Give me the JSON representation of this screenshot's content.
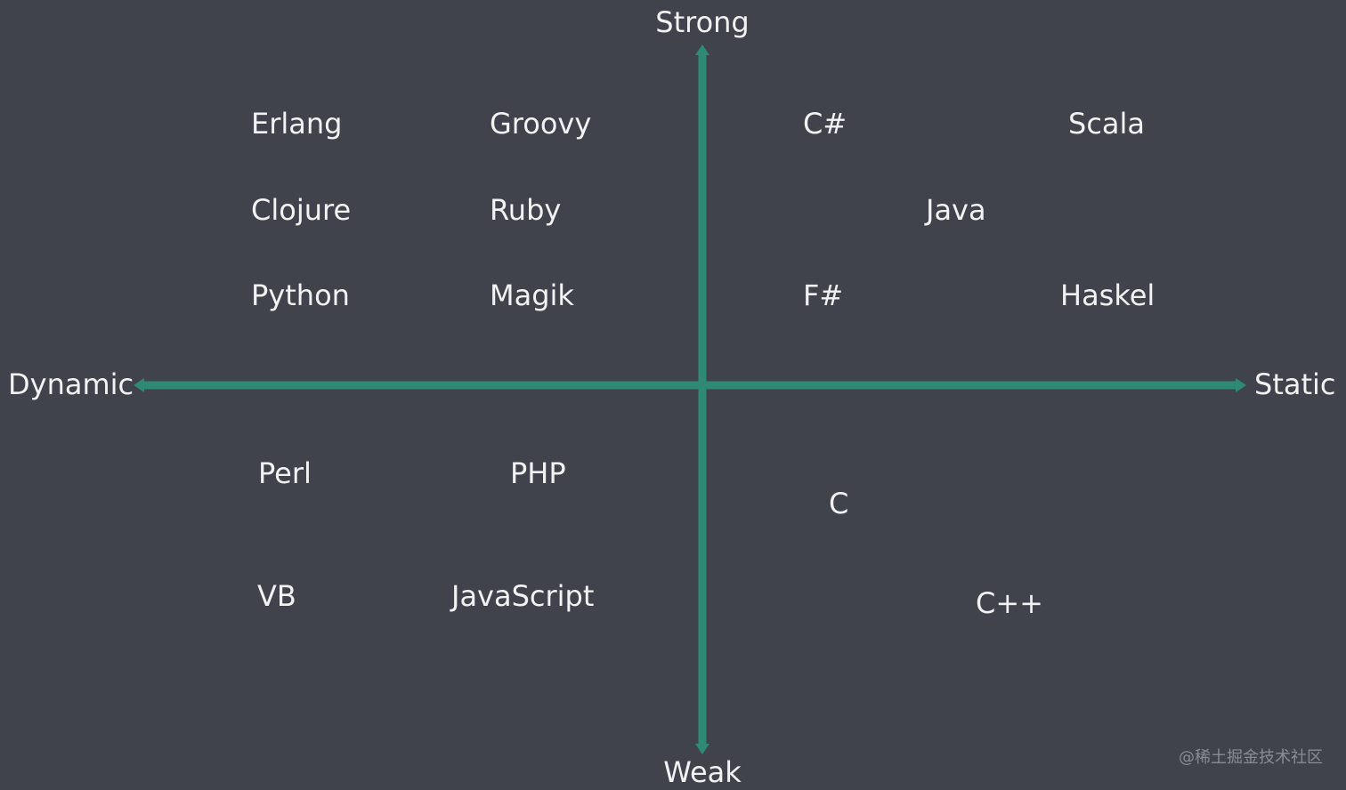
{
  "axes": {
    "top": "Strong",
    "bottom": "Weak",
    "left": "Dynamic",
    "right": "Static"
  },
  "languages": [
    "Erlang",
    "Groovy",
    "C#",
    "Scala",
    "Clojure",
    "Ruby",
    "Java",
    "Python",
    "Magik",
    "F#",
    "Haskel",
    "Perl",
    "PHP",
    "C",
    "VB",
    "JavaScript",
    "C++"
  ],
  "watermark": "@稀土掘金技术社区"
}
